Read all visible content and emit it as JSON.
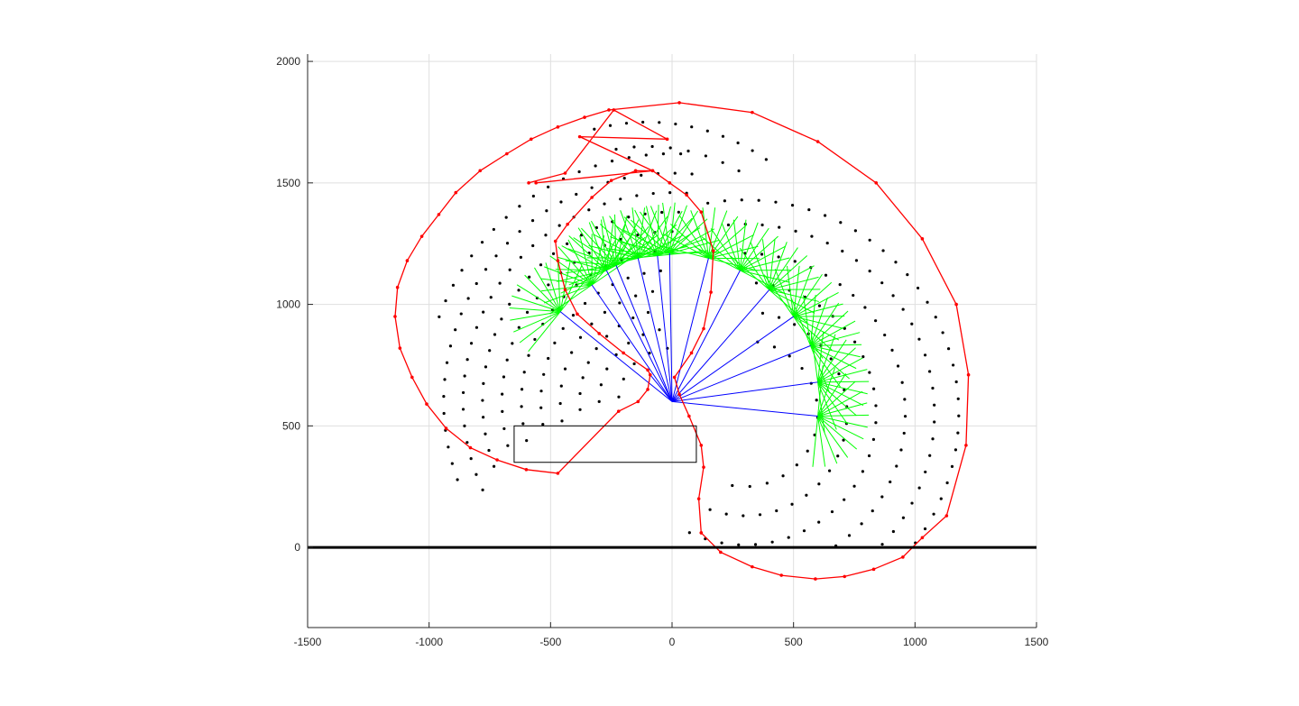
{
  "chart_data": {
    "type": "scatter",
    "title": "",
    "xlabel": "",
    "ylabel": "",
    "xlim": [
      -1500,
      1500
    ],
    "ylim": [
      -330,
      2030
    ],
    "grid": true,
    "xticks": [
      -1500,
      -1000,
      -500,
      0,
      500,
      1000,
      1500
    ],
    "yticks": [
      0,
      500,
      1000,
      1500,
      2000
    ],
    "xtick_labels": [
      "-1500",
      "-1000",
      "-500",
      "0",
      "500",
      "1000",
      "1500"
    ],
    "ytick_labels": [
      "0",
      "500",
      "1000",
      "1500",
      "2000"
    ],
    "colors": {
      "boundary": "#ff0000",
      "rays": "#00ff00",
      "links": "#0000ff",
      "points": "#000000",
      "ground": "#000000",
      "box": "#000000",
      "grid": "#dfdfdf",
      "axis": "#262626"
    },
    "ground_line": {
      "y": 0,
      "x_range": [
        -1500,
        1500
      ]
    },
    "rectangle": {
      "x": [
        -650,
        100
      ],
      "y": [
        350,
        500
      ]
    },
    "boundary_outer": [
      [
        120,
        60
      ],
      [
        200,
        -20
      ],
      [
        330,
        -80
      ],
      [
        450,
        -115
      ],
      [
        590,
        -130
      ],
      [
        710,
        -120
      ],
      [
        830,
        -90
      ],
      [
        950,
        -40
      ],
      [
        1030,
        40
      ],
      [
        1130,
        130
      ],
      [
        1210,
        420
      ],
      [
        1220,
        710
      ],
      [
        1170,
        1000
      ],
      [
        1030,
        1270
      ],
      [
        840,
        1500
      ],
      [
        600,
        1670
      ],
      [
        330,
        1790
      ],
      [
        30,
        1830
      ],
      [
        -260,
        1800
      ],
      [
        -360,
        1770
      ],
      [
        -470,
        1730
      ],
      [
        -580,
        1680
      ],
      [
        -680,
        1620
      ],
      [
        -790,
        1550
      ],
      [
        -890,
        1460
      ],
      [
        -960,
        1370
      ],
      [
        -1030,
        1280
      ],
      [
        -1090,
        1180
      ],
      [
        -1130,
        1070
      ],
      [
        -1140,
        950
      ],
      [
        -1120,
        820
      ],
      [
        -1070,
        700
      ],
      [
        -1010,
        590
      ],
      [
        -930,
        490
      ],
      [
        -830,
        410
      ],
      [
        -720,
        360
      ],
      [
        -600,
        320
      ],
      [
        -470,
        305
      ],
      [
        -220,
        560
      ],
      [
        -140,
        600
      ],
      [
        -100,
        650
      ],
      [
        -90,
        710
      ],
      [
        -100,
        730
      ],
      [
        -200,
        800
      ],
      [
        -300,
        880
      ],
      [
        -390,
        960
      ],
      [
        -440,
        1060
      ],
      [
        -470,
        1180
      ],
      [
        -480,
        1260
      ],
      [
        -430,
        1330
      ],
      [
        -330,
        1440
      ],
      [
        -250,
        1510
      ],
      [
        -150,
        1550
      ],
      [
        -80,
        1550
      ],
      [
        -10,
        1500
      ],
      [
        60,
        1450
      ],
      [
        120,
        1380
      ],
      [
        170,
        1220
      ],
      [
        160,
        1050
      ],
      [
        130,
        900
      ],
      [
        80,
        800
      ],
      [
        10,
        700
      ],
      [
        30,
        630
      ],
      [
        70,
        540
      ],
      [
        120,
        420
      ],
      [
        130,
        330
      ],
      [
        110,
        200
      ],
      [
        120,
        60
      ]
    ],
    "boundary_inner_loop": [
      [
        -560,
        1500
      ],
      [
        -80,
        1550
      ],
      [
        -380,
        1690
      ],
      [
        -20,
        1680
      ],
      [
        -240,
        1800
      ],
      [
        -440,
        1540
      ],
      [
        -590,
        1500
      ]
    ],
    "hub": [
      0,
      600
    ],
    "ray_centers": [
      [
        -460,
        970
      ],
      [
        -330,
        1080
      ],
      [
        -270,
        1140
      ],
      [
        -230,
        1160
      ],
      [
        -140,
        1190
      ],
      [
        -60,
        1200
      ],
      [
        -10,
        1210
      ],
      [
        150,
        1190
      ],
      [
        280,
        1140
      ],
      [
        400,
        1060
      ],
      [
        500,
        950
      ],
      [
        570,
        830
      ],
      [
        600,
        680
      ],
      [
        600,
        540
      ]
    ],
    "ray_length": 210,
    "ray_count": 14,
    "links": [
      [
        -460,
        970
      ],
      [
        -330,
        1080
      ],
      [
        -270,
        1140
      ],
      [
        -230,
        1160
      ],
      [
        -140,
        1190
      ],
      [
        -60,
        1200
      ],
      [
        -10,
        1210
      ],
      [
        150,
        1190
      ],
      [
        280,
        1140
      ],
      [
        400,
        1060
      ],
      [
        500,
        950
      ],
      [
        570,
        830
      ],
      [
        600,
        680
      ],
      [
        600,
        540
      ],
      [
        -90,
        710
      ]
    ],
    "points_arcs": [
      {
        "center": [
          0,
          600
        ],
        "radius": 220,
        "start_deg": 95,
        "end_deg": 175
      },
      {
        "center": [
          0,
          600
        ],
        "radius": 300,
        "start_deg": 100,
        "end_deg": 180
      },
      {
        "center": [
          0,
          600
        ],
        "radius": 380,
        "start_deg": 105,
        "end_deg": 185
      },
      {
        "center": [
          0,
          600
        ],
        "radius": 460,
        "start_deg": 100,
        "end_deg": 190
      },
      {
        "center": [
          0,
          600
        ],
        "radius": 540,
        "start_deg": 95,
        "end_deg": 190
      },
      {
        "center": [
          0,
          600
        ],
        "radius": 620,
        "start_deg": 90,
        "end_deg": 195
      },
      {
        "center": [
          0,
          600
        ],
        "radius": 700,
        "start_deg": 90,
        "end_deg": 195
      },
      {
        "center": [
          0,
          600
        ],
        "radius": 780,
        "start_deg": 88,
        "end_deg": 200
      },
      {
        "center": [
          0,
          600
        ],
        "radius": 860,
        "start_deg": 86,
        "end_deg": 205
      },
      {
        "center": [
          0,
          600
        ],
        "radius": 940,
        "start_deg": 85,
        "end_deg": 200
      },
      {
        "center": [
          0,
          600
        ],
        "radius": 1020,
        "start_deg": 88,
        "end_deg": 160
      },
      {
        "center": [
          300,
          550
        ],
        "radius": 300,
        "start_deg": -100,
        "end_deg": 80
      },
      {
        "center": [
          300,
          550
        ],
        "radius": 420,
        "start_deg": -110,
        "end_deg": 80
      },
      {
        "center": [
          300,
          550
        ],
        "radius": 540,
        "start_deg": -115,
        "end_deg": 85
      },
      {
        "center": [
          300,
          550
        ],
        "radius": 660,
        "start_deg": -110,
        "end_deg": 90
      },
      {
        "center": [
          300,
          550
        ],
        "radius": 780,
        "start_deg": -100,
        "end_deg": 95
      },
      {
        "center": [
          300,
          550
        ],
        "radius": 880,
        "start_deg": -60,
        "end_deg": 100
      },
      {
        "center": [
          -100,
          900
        ],
        "radius": 750,
        "start_deg": 60,
        "end_deg": 100
      },
      {
        "center": [
          -100,
          900
        ],
        "radius": 850,
        "start_deg": 55,
        "end_deg": 105
      }
    ]
  }
}
